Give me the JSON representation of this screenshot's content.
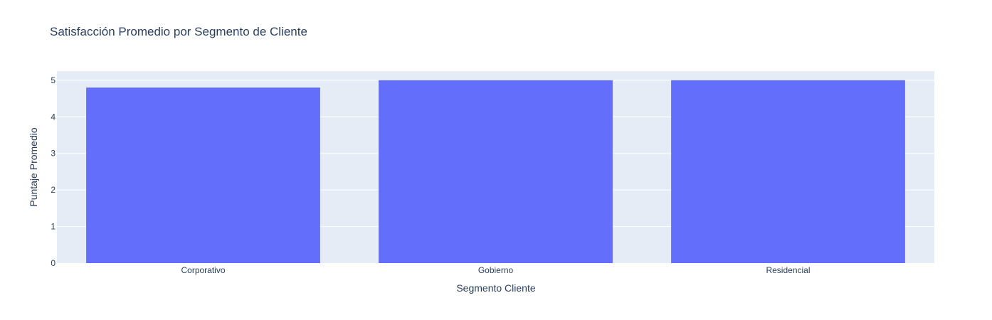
{
  "chart_data": {
    "type": "bar",
    "title": "Satisfacción Promedio por Segmento de Cliente",
    "xlabel": "Segmento Cliente",
    "ylabel": "Puntaje Promedio",
    "categories": [
      "Corporativo",
      "Gobierno",
      "Residencial"
    ],
    "values": [
      4.8,
      5.0,
      5.0
    ],
    "ylim": [
      0,
      5.25
    ],
    "yticks": [
      "0",
      "1",
      "2",
      "3",
      "4",
      "5"
    ],
    "grid": true,
    "bar_color": "#636efa",
    "plot_background": "#e5ecf6",
    "gridline_color": "#ffffff",
    "text_color": "#2a3f5f"
  }
}
